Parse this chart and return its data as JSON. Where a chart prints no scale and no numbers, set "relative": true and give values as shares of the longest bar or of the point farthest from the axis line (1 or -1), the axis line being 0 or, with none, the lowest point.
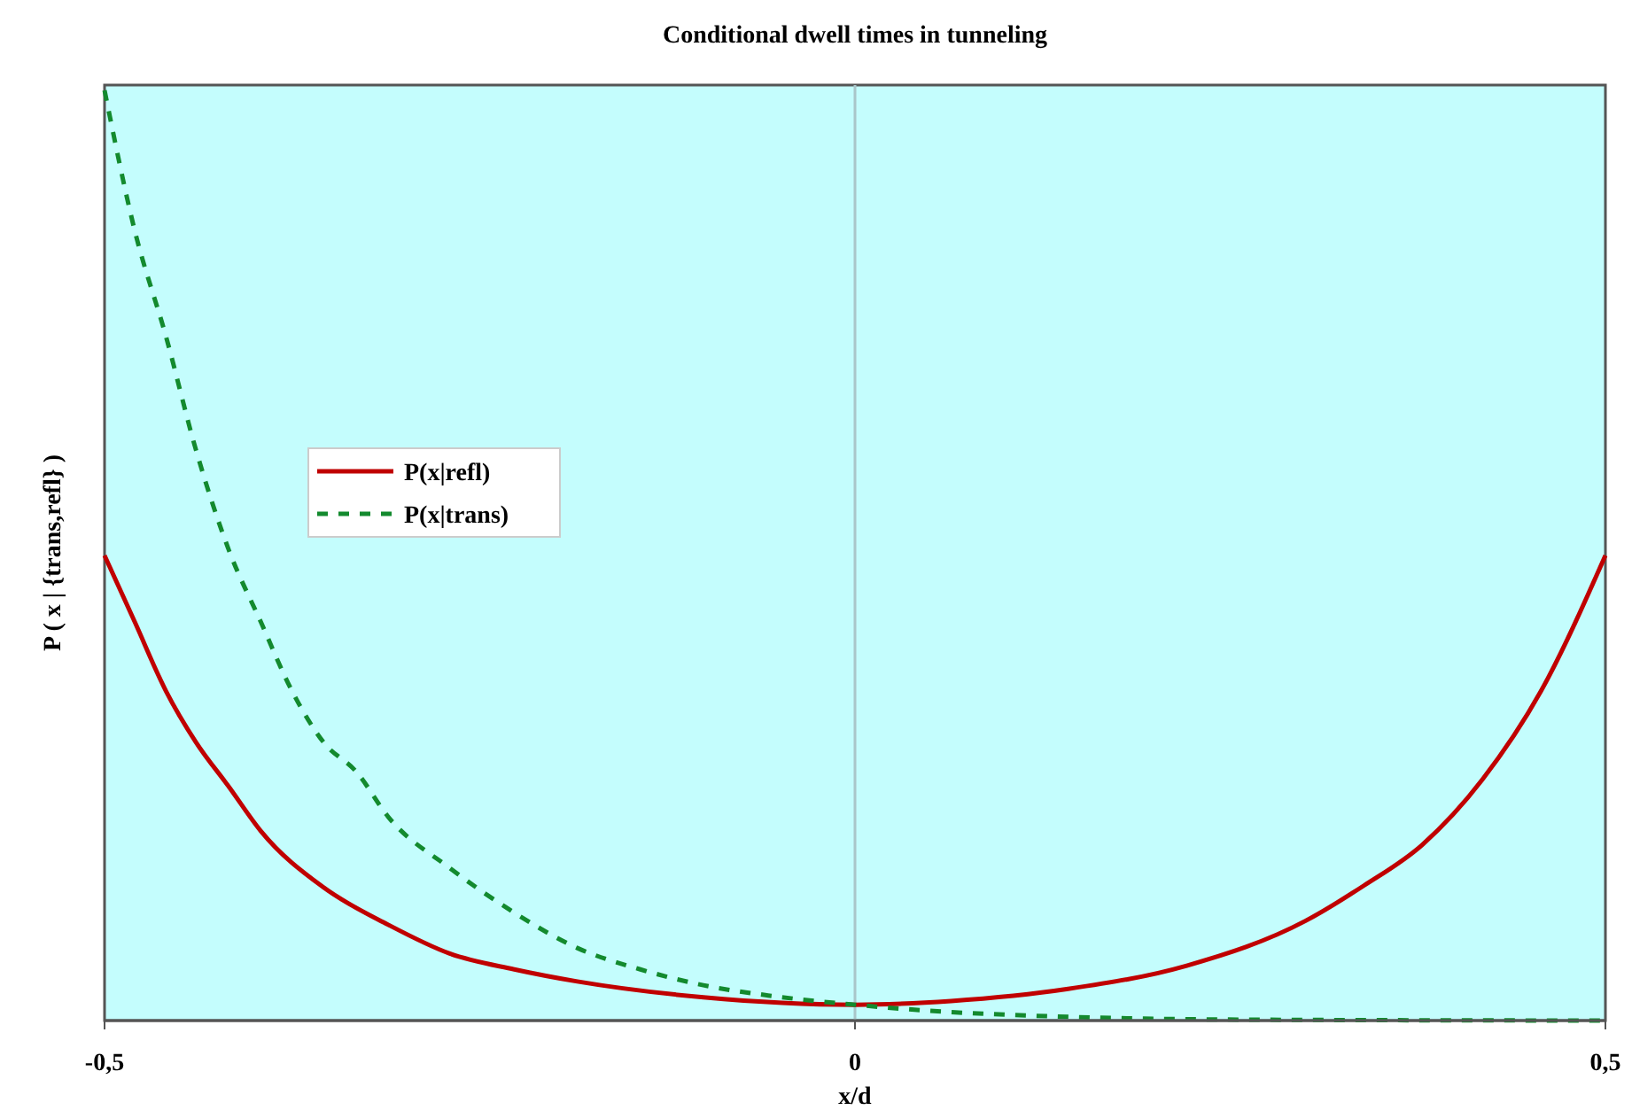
{
  "chart_data": {
    "type": "line",
    "title": "Conditional dwell times in tunneling",
    "xlabel": "x/d",
    "ylabel": "P ( x | {trans,refl} )",
    "relative": true,
    "xlim": [
      -0.5,
      0.5
    ],
    "xticks": [
      {
        "value": -0.5,
        "label": "-0,5"
      },
      0,
      {
        "value": 0.5,
        "label": "0,5"
      }
    ],
    "legend": "left",
    "grid": false,
    "marker": "none",
    "ref_lines": [
      {
        "axis": "x",
        "value": 0,
        "color": "#a9c6c9"
      }
    ],
    "series": [
      {
        "name": "P(x|refl)",
        "color": "#c00000",
        "line_style": "solid",
        "x": [
          -0.5,
          -0.48,
          -0.459,
          -0.439,
          -0.417,
          -0.396,
          -0.354,
          -0.311,
          -0.27,
          -0.227,
          -0.185,
          -0.101,
          0,
          0.064,
          0.142,
          0.221,
          0.3,
          0.339,
          0.378,
          0.418,
          0.457,
          0.5
        ],
        "values": [
          0.5,
          0.429,
          0.354,
          0.299,
          0.251,
          0.204,
          0.143,
          0.103,
          0.072,
          0.055,
          0.042,
          0.025,
          0.017,
          0.021,
          0.034,
          0.059,
          0.107,
          0.145,
          0.189,
          0.259,
          0.354,
          0.5
        ]
      },
      {
        "name": "P(x|trans)",
        "color": "#138a2e",
        "line_style": "dashed",
        "x": [
          -0.5,
          -0.48,
          -0.459,
          -0.439,
          -0.417,
          -0.396,
          -0.375,
          -0.354,
          -0.332,
          -0.311,
          -0.27,
          -0.227,
          -0.185,
          -0.143,
          -0.101,
          -0.058,
          0,
          0.045,
          0.142,
          0.26,
          0.5
        ],
        "values": [
          1,
          0.85,
          0.735,
          0.613,
          0.505,
          0.429,
          0.354,
          0.299,
          0.267,
          0.219,
          0.164,
          0.116,
          0.078,
          0.055,
          0.038,
          0.027,
          0.017,
          0.011,
          0.004,
          0.001,
          0
        ]
      }
    ]
  }
}
